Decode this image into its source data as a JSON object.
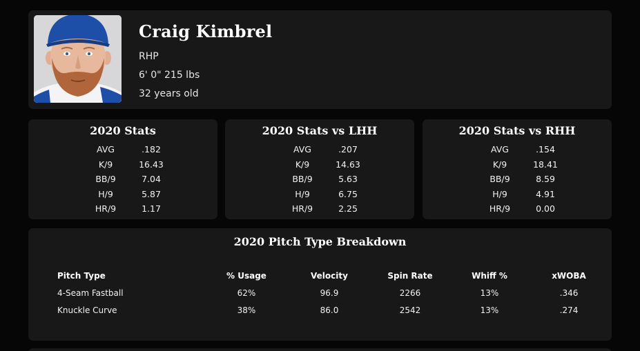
{
  "player": {
    "name": "Craig Kimbrel",
    "position": "RHP",
    "size": "6' 0\" 215 lbs",
    "age": "32 years old",
    "headshot_icon": "player-headshot"
  },
  "stats_cards": [
    {
      "title": "2020 Stats",
      "rows": [
        {
          "label": "AVG",
          "value": ".182"
        },
        {
          "label": "K/9",
          "value": "16.43"
        },
        {
          "label": "BB/9",
          "value": "7.04"
        },
        {
          "label": "H/9",
          "value": "5.87"
        },
        {
          "label": "HR/9",
          "value": "1.17"
        }
      ]
    },
    {
      "title": "2020 Stats vs LHH",
      "rows": [
        {
          "label": "AVG",
          "value": ".207"
        },
        {
          "label": "K/9",
          "value": "14.63"
        },
        {
          "label": "BB/9",
          "value": "5.63"
        },
        {
          "label": "H/9",
          "value": "6.75"
        },
        {
          "label": "HR/9",
          "value": "2.25"
        }
      ]
    },
    {
      "title": "2020 Stats vs RHH",
      "rows": [
        {
          "label": "AVG",
          "value": ".154"
        },
        {
          "label": "K/9",
          "value": "18.41"
        },
        {
          "label": "BB/9",
          "value": "8.59"
        },
        {
          "label": "H/9",
          "value": "4.91"
        },
        {
          "label": "HR/9",
          "value": "0.00"
        }
      ]
    }
  ],
  "pitch_breakdown": {
    "title": "2020 Pitch Type Breakdown",
    "headers": [
      "Pitch Type",
      "% Usage",
      "Velocity",
      "Spin Rate",
      "Whiff %",
      "xWOBA"
    ],
    "rows": [
      [
        "4-Seam Fastball",
        "62%",
        "96.9",
        "2266",
        "13%",
        ".346"
      ],
      [
        "Knuckle Curve",
        "38%",
        "86.0",
        "2542",
        "13%",
        ".274"
      ]
    ]
  },
  "colors": {
    "background": "#060606",
    "card": "#181818",
    "cap_blue": "#1d4fa8",
    "beard": "#b0663a"
  }
}
